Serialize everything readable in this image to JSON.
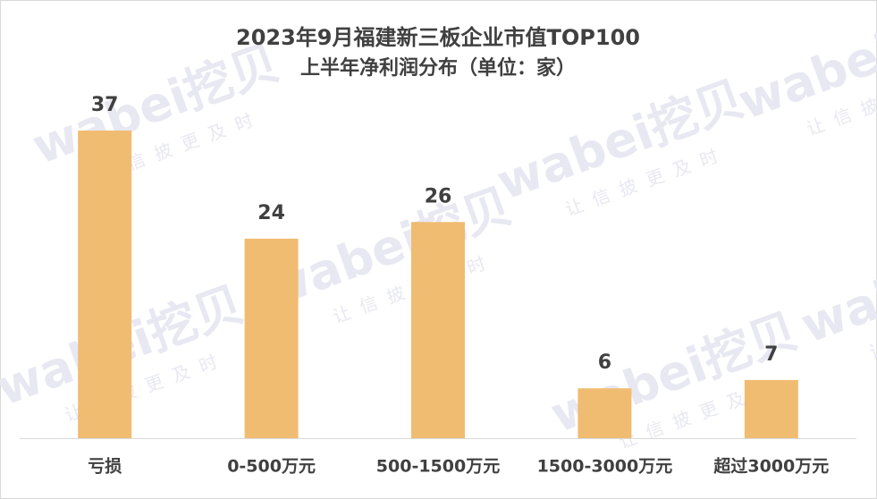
{
  "chart_data": {
    "type": "bar",
    "title": "2023年9月福建新三板企业市值TOP100",
    "subtitle": "上半年净利润分布（单位：家）",
    "categories": [
      "亏损",
      "0-500万元",
      "500-1500万元",
      "1500-3000万元",
      "超过3000万元"
    ],
    "values": [
      37,
      24,
      26,
      6,
      7
    ],
    "color": "#f0bc72",
    "watermark": "wabei挖贝",
    "watermark_tagline": "让信披更及时"
  }
}
